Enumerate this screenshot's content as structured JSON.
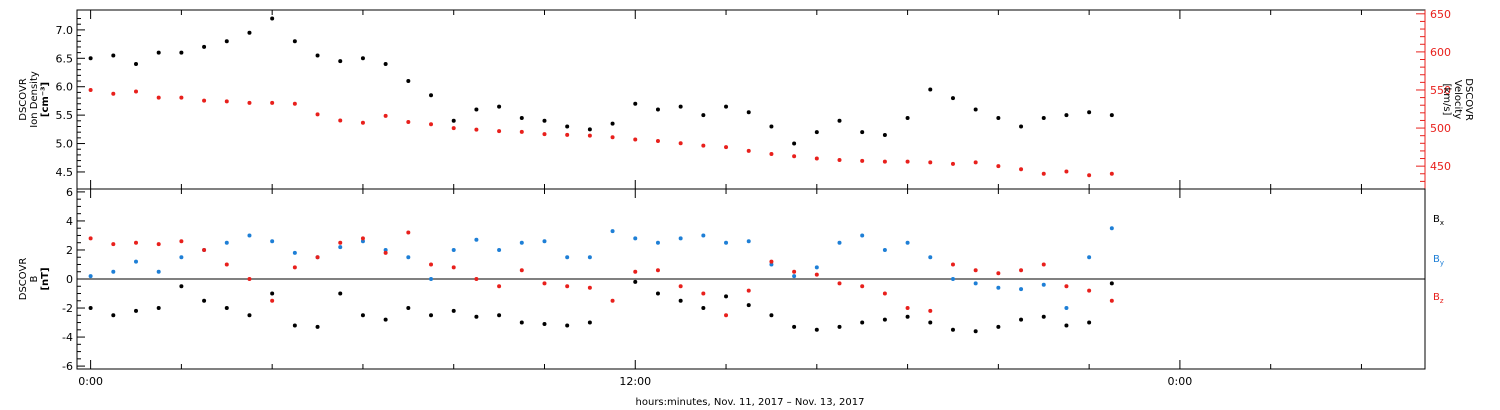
{
  "chart_data": [
    {
      "type": "scatter",
      "panel": "plasma",
      "left_axis_label": [
        "DSCOVR",
        "Ion Density",
        "[cm⁻³]"
      ],
      "right_axis_label": [
        "DSCOVR",
        "Velocity",
        "[km/s]"
      ],
      "left_ylim": [
        4.2,
        7.35
      ],
      "left_ticks": [
        "4.5",
        "5.0",
        "5.5",
        "6.0",
        "6.5",
        "7.0"
      ],
      "right_ylim": [
        420,
        655
      ],
      "right_ticks": [
        "450",
        "500",
        "550",
        "600",
        "650"
      ],
      "colors": {
        "density": "#000000",
        "velocity": "#e8201c"
      },
      "series": [
        {
          "axis": "left",
          "hours": [
            0.0,
            0.5,
            1.0,
            1.5,
            2.0,
            2.5,
            3.0,
            3.5,
            4.0,
            4.5,
            5.0,
            5.5,
            6.0,
            6.5,
            7.0,
            7.5,
            8.0,
            8.5,
            9.0,
            9.5,
            10.0,
            10.5,
            11.0,
            11.5,
            12.0,
            12.5,
            13.0,
            13.5,
            14.0,
            14.5,
            15.0,
            15.5,
            16.0,
            16.5,
            17.0,
            17.5,
            18.0,
            18.5,
            19.0,
            19.5,
            20.0,
            20.5,
            21.0,
            21.5,
            22.0,
            22.5
          ],
          "values": [
            6.5,
            6.55,
            6.4,
            6.6,
            6.6,
            6.7,
            6.8,
            6.95,
            7.2,
            6.8,
            6.55,
            6.45,
            6.5,
            6.4,
            6.1,
            5.85,
            5.4,
            5.6,
            5.65,
            5.45,
            5.4,
            5.3,
            5.25,
            5.35,
            5.7,
            5.6,
            5.65,
            5.5,
            5.65,
            5.55,
            5.3,
            5.0,
            5.2,
            5.4,
            5.2,
            5.15,
            5.45,
            5.95,
            5.8,
            5.6,
            5.45,
            5.3,
            5.45,
            5.5,
            5.55,
            5.5
          ]
        },
        {
          "axis": "right",
          "hours": [
            0.0,
            0.5,
            1.0,
            1.5,
            2.0,
            2.5,
            3.0,
            3.5,
            4.0,
            4.5,
            5.0,
            5.5,
            6.0,
            6.5,
            7.0,
            7.5,
            8.0,
            8.5,
            9.0,
            9.5,
            10.0,
            10.5,
            11.0,
            11.5,
            12.0,
            12.5,
            13.0,
            13.5,
            14.0,
            14.5,
            15.0,
            15.5,
            16.0,
            16.5,
            17.0,
            17.5,
            18.0,
            18.5,
            19.0,
            19.5,
            20.0,
            20.5,
            21.0,
            21.5,
            22.0,
            22.5
          ],
          "values": [
            550,
            545,
            548,
            540,
            540,
            536,
            535,
            533,
            533,
            532,
            518,
            510,
            507,
            516,
            508,
            505,
            500,
            498,
            496,
            495,
            492,
            491,
            490,
            488,
            485,
            483,
            480,
            477,
            475,
            470,
            466,
            463,
            460,
            458,
            457,
            456,
            456,
            455,
            453,
            455,
            450,
            446,
            440,
            443,
            438,
            440
          ]
        }
      ]
    },
    {
      "type": "scatter",
      "panel": "magnetic-field",
      "ylabel": [
        "DSCOVR",
        "B",
        "[nT]"
      ],
      "ylim": [
        -6.2,
        6.2
      ],
      "y_ticks": [
        "-6",
        "-4",
        "-2",
        "0",
        "2",
        "4",
        "6"
      ],
      "series": [
        {
          "name": "Bx",
          "legend": "B",
          "legend_sub": "x",
          "color": "#000000",
          "hours": [
            0.0,
            0.5,
            1.0,
            1.5,
            2.0,
            2.5,
            3.0,
            3.5,
            4.0,
            4.5,
            5.0,
            5.5,
            6.0,
            6.5,
            7.0,
            7.5,
            8.0,
            8.5,
            9.0,
            9.5,
            10.0,
            10.5,
            11.0,
            11.5,
            12.0,
            12.5,
            13.0,
            13.5,
            14.0,
            14.5,
            15.0,
            15.5,
            16.0,
            16.5,
            17.0,
            17.5,
            18.0,
            18.5,
            19.0,
            19.5,
            20.0,
            20.5,
            21.0,
            21.5,
            22.0,
            22.5
          ],
          "values": [
            -2.0,
            -2.5,
            -2.2,
            -2.0,
            -0.5,
            -1.5,
            -2.0,
            -2.5,
            -1.0,
            -3.2,
            -3.3,
            -1.0,
            -2.5,
            -2.8,
            -2.0,
            -2.5,
            -2.2,
            -2.6,
            -2.5,
            -3.0,
            -3.1,
            -3.2,
            -3.0,
            null,
            -0.2,
            -1.0,
            -1.5,
            -2.0,
            -1.2,
            -1.8,
            -2.5,
            -3.3,
            -3.5,
            -3.3,
            -3.0,
            -2.8,
            -2.6,
            -3.0,
            -3.5,
            -3.6,
            -3.3,
            -2.8,
            -2.6,
            -3.2,
            -3.0,
            -0.3
          ]
        },
        {
          "name": "By",
          "legend": "B",
          "legend_sub": "y",
          "color": "#1e7fd6",
          "hours": [
            0.0,
            0.5,
            1.0,
            1.5,
            2.0,
            2.5,
            3.0,
            3.5,
            4.0,
            4.5,
            5.0,
            5.5,
            6.0,
            6.5,
            7.0,
            7.5,
            8.0,
            8.5,
            9.0,
            9.5,
            10.0,
            10.5,
            11.0,
            11.5,
            12.0,
            12.5,
            13.0,
            13.5,
            14.0,
            14.5,
            15.0,
            15.5,
            16.0,
            16.5,
            17.0,
            17.5,
            18.0,
            18.5,
            19.0,
            19.5,
            20.0,
            20.5,
            21.0,
            21.5,
            22.0,
            22.5
          ],
          "values": [
            0.2,
            0.5,
            1.2,
            0.5,
            1.5,
            2.0,
            2.5,
            3.0,
            2.6,
            1.8,
            1.5,
            2.2,
            2.6,
            2.0,
            1.5,
            0.0,
            2.0,
            2.7,
            2.0,
            2.5,
            2.6,
            1.5,
            1.5,
            3.3,
            2.8,
            2.5,
            2.8,
            3.0,
            2.5,
            2.6,
            1.0,
            0.2,
            0.8,
            2.5,
            3.0,
            2.0,
            2.5,
            1.5,
            0.0,
            -0.3,
            -0.6,
            -0.7,
            -0.4,
            -2.0,
            1.5,
            3.5
          ]
        },
        {
          "name": "Bz",
          "legend": "B",
          "legend_sub": "z",
          "color": "#e8201c",
          "hours": [
            0.0,
            0.5,
            1.0,
            1.5,
            2.0,
            2.5,
            3.0,
            3.5,
            4.0,
            4.5,
            5.0,
            5.5,
            6.0,
            6.5,
            7.0,
            7.5,
            8.0,
            8.5,
            9.0,
            9.5,
            10.0,
            10.5,
            11.0,
            11.5,
            12.0,
            12.5,
            13.0,
            13.5,
            14.0,
            14.5,
            15.0,
            15.5,
            16.0,
            16.5,
            17.0,
            17.5,
            18.0,
            18.5,
            19.0,
            19.5,
            20.0,
            20.5,
            21.0,
            21.5,
            22.0,
            22.5
          ],
          "values": [
            2.8,
            2.4,
            2.5,
            2.4,
            2.6,
            2.0,
            1.0,
            0.0,
            -1.5,
            0.8,
            1.5,
            2.5,
            2.8,
            1.8,
            3.2,
            1.0,
            0.8,
            0.0,
            -0.5,
            0.6,
            -0.3,
            -0.5,
            -0.6,
            -1.5,
            0.5,
            0.6,
            -0.5,
            -1.0,
            -2.5,
            -0.8,
            1.2,
            0.5,
            0.3,
            -0.3,
            -0.5,
            -1.0,
            -2.0,
            -2.2,
            1.0,
            0.6,
            0.4,
            0.6,
            1.0,
            -0.5,
            -0.8,
            -1.5
          ]
        }
      ]
    }
  ],
  "x_axis": {
    "range_hours": [
      -0.3,
      29.4
    ],
    "major_ticks_hours": [
      0,
      12,
      24
    ],
    "major_tick_labels": [
      "0:00",
      "12:00",
      "0:00"
    ],
    "minor_tick_every_hours": 2,
    "label": "hours:minutes, Nov. 11, 2017 – Nov. 13, 2017"
  }
}
